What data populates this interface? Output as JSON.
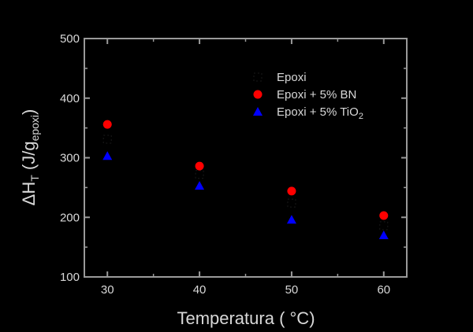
{
  "chart_data": {
    "type": "scatter",
    "title": "",
    "xlabel": "Temperatura (  °C)",
    "ylabel": "ΔH_T (J/g_epoxi)",
    "ylabel_parts": {
      "main": "ΔH",
      "main_sub": "T",
      "unit_open": " (J/g",
      "unit_sub": "epoxi",
      "unit_close": ")"
    },
    "x": [
      30,
      40,
      50,
      60
    ],
    "xlim": [
      27.5,
      62.5
    ],
    "ylim": [
      100,
      500
    ],
    "xticks": [
      30,
      40,
      50,
      60
    ],
    "xtick_labels": [
      "30",
      "40",
      "50",
      "60"
    ],
    "yticks": [
      100,
      200,
      300,
      400,
      500
    ],
    "ytick_labels": [
      "100",
      "200",
      "300",
      "400",
      "500"
    ],
    "grid": false,
    "legend_position": "upper right (inside)",
    "series": [
      {
        "name": "Epoxi",
        "marker": "square",
        "color": "#000000",
        "values": [
          331,
          272,
          224,
          186
        ]
      },
      {
        "name": "Epoxi + 5% BN",
        "marker": "circle",
        "color": "#ff0000",
        "values": [
          356,
          286,
          244,
          203
        ]
      },
      {
        "name": "Epoxi + 5% TiO2",
        "name_parts": {
          "main": "Epoxi + 5% TiO",
          "sub": "2"
        },
        "marker": "triangle",
        "color": "#0000ff",
        "values": [
          303,
          253,
          196,
          170
        ]
      }
    ]
  },
  "colors": {
    "background": "#000000",
    "axis": "#9a9a9a",
    "text": "#d8d8d8"
  }
}
